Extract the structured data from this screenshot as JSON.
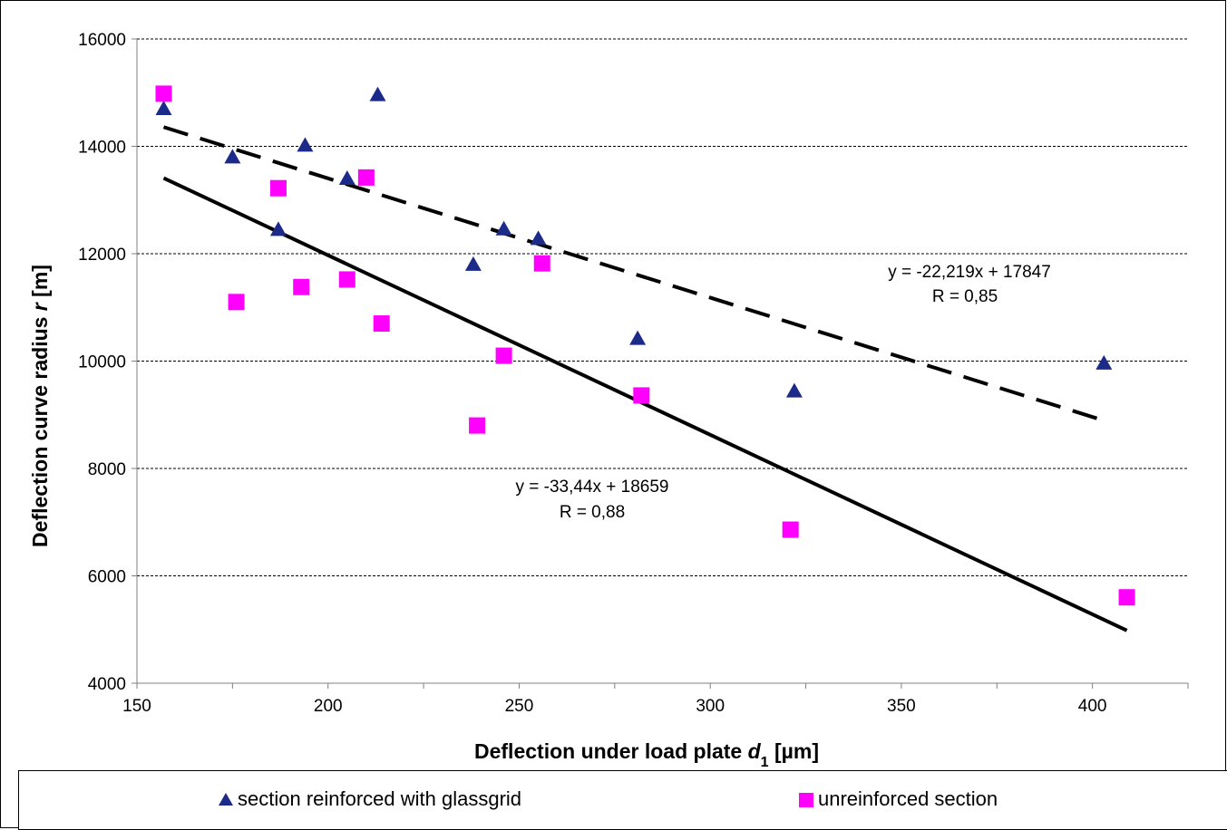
{
  "chart_data": {
    "type": "scatter",
    "xlabel": "Deflection under load plate",
    "xlabel_var": "d",
    "xlabel_sub": "1",
    "xlabel_unit": "[µm]",
    "ylabel": "Deflection curve radius",
    "ylabel_var": "r",
    "ylabel_unit": "[m]",
    "xlim": [
      150,
      425
    ],
    "ylim": [
      4000,
      16000
    ],
    "x_ticks": [
      150,
      200,
      250,
      300,
      350,
      400
    ],
    "y_ticks": [
      4000,
      6000,
      8000,
      10000,
      12000,
      14000,
      16000
    ],
    "grid": "horizontal dashed",
    "legend_position": "bottom",
    "series": [
      {
        "name": "section reinforced with glassgrid",
        "marker": "triangle",
        "color": "#1c2a8a",
        "points": [
          [
            157,
            14700
          ],
          [
            175,
            13800
          ],
          [
            187,
            12450
          ],
          [
            194,
            14020
          ],
          [
            205,
            13400
          ],
          [
            213,
            14960
          ],
          [
            238,
            11800
          ],
          [
            246,
            12460
          ],
          [
            255,
            12280
          ],
          [
            281,
            10420
          ],
          [
            322,
            9440
          ],
          [
            403,
            9960
          ]
        ]
      },
      {
        "name": "unreinforced section",
        "marker": "square",
        "color": "#ff00ff",
        "points": [
          [
            157,
            14980
          ],
          [
            176,
            11100
          ],
          [
            187,
            13220
          ],
          [
            193,
            11380
          ],
          [
            205,
            11520
          ],
          [
            210,
            13420
          ],
          [
            214,
            10700
          ],
          [
            239,
            8800
          ],
          [
            246,
            10100
          ],
          [
            256,
            11820
          ],
          [
            282,
            9360
          ],
          [
            321,
            6860
          ],
          [
            409,
            5600
          ]
        ]
      }
    ],
    "trendlines": [
      {
        "series": "section reinforced with glassgrid",
        "style": "dashed",
        "slope": -22.219,
        "intercept": 17847,
        "x_range": [
          157,
          403
        ],
        "equation": "y = -22,219x + 17847",
        "r_label": "R = 0,85"
      },
      {
        "series": "unreinforced section",
        "style": "solid",
        "slope": -33.44,
        "intercept": 18659,
        "x_range": [
          157,
          409
        ],
        "equation": "y = -33,44x + 18659",
        "r_label": "R = 0,88"
      }
    ]
  }
}
